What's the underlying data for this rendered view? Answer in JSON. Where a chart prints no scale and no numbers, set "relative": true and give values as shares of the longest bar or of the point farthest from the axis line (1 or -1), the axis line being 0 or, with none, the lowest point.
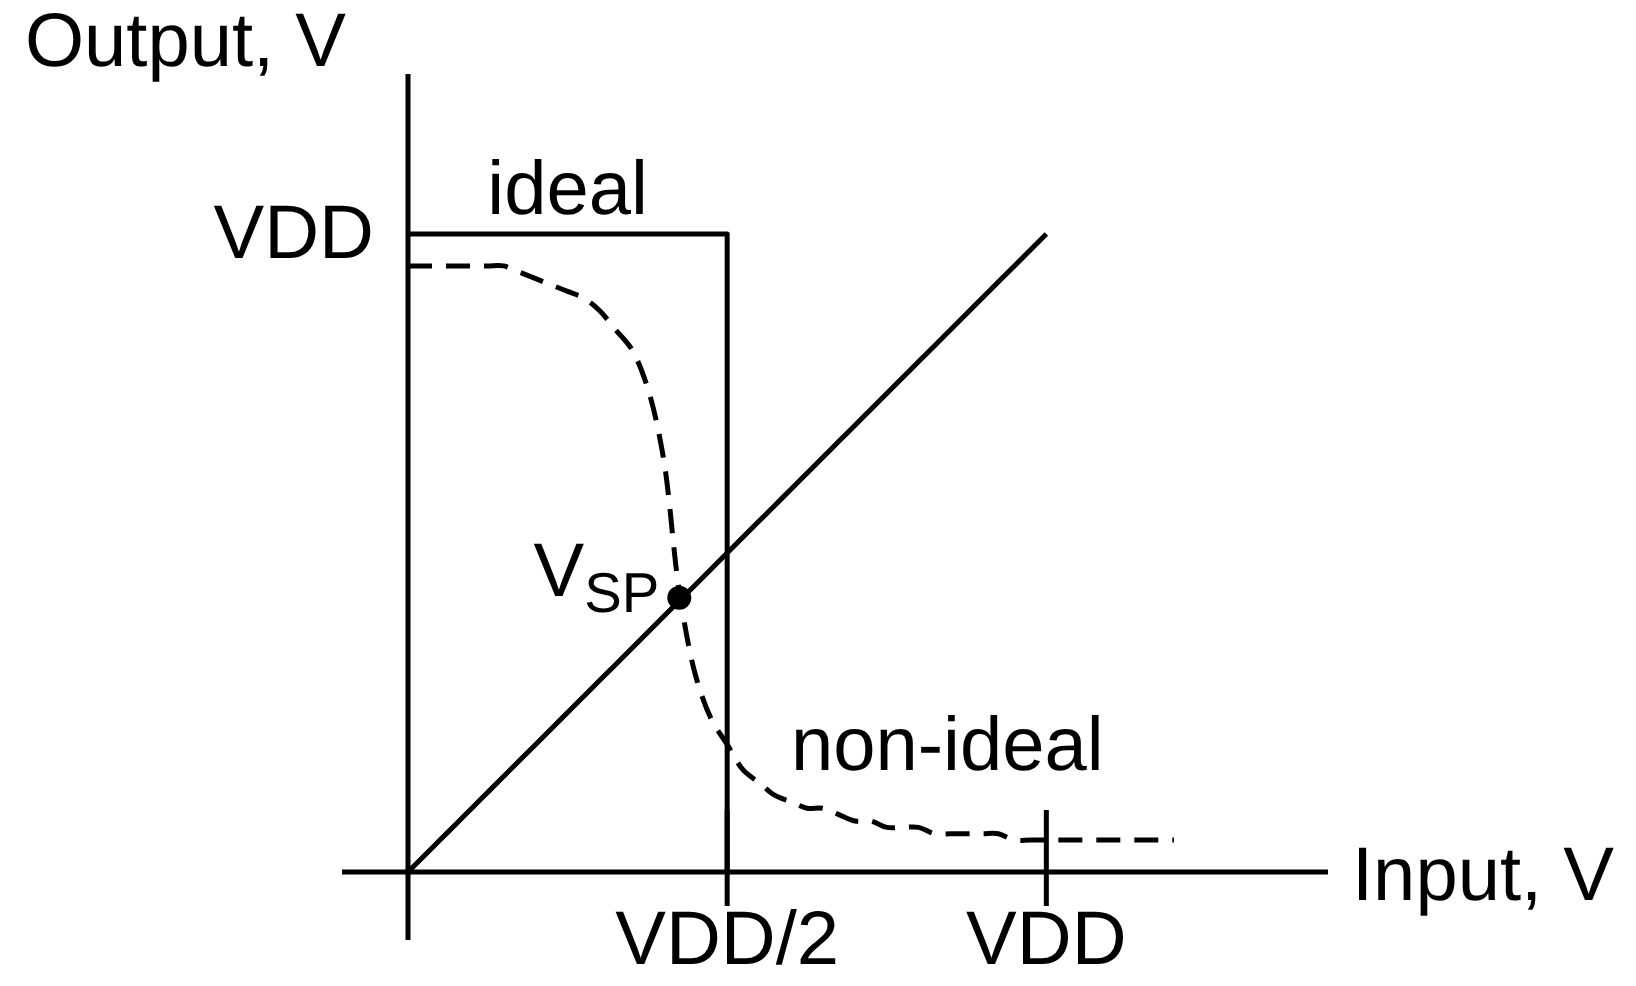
{
  "chart_data": {
    "type": "line",
    "xlabel": "Input, V",
    "ylabel": "Output, V",
    "relative": true,
    "categories": [
      null,
      null,
      null,
      null,
      null,
      null,
      null,
      null,
      null,
      null,
      null,
      null,
      null,
      null,
      null,
      null,
      null,
      null,
      null,
      null,
      "VDD/2",
      null,
      null,
      null,
      null,
      null,
      null,
      null,
      null,
      null,
      null,
      null,
      null,
      null,
      null,
      null,
      null,
      null,
      null,
      null,
      "VDD",
      null,
      null,
      null,
      null,
      null,
      null,
      null,
      null
    ],
    "series": [
      {
        "name": "ideal",
        "type": "step",
        "color": "#000000",
        "line_style": "solid",
        "values": [
          1,
          1,
          1,
          1,
          1,
          1,
          1,
          1,
          1,
          1,
          1,
          1,
          1,
          1,
          1,
          1,
          1,
          1,
          1,
          1,
          0,
          null,
          null,
          null,
          null,
          null,
          null,
          null,
          null,
          null,
          null,
          null,
          null,
          null,
          null,
          null,
          null,
          null,
          null,
          null,
          null,
          null,
          null,
          null,
          null,
          null,
          null,
          null,
          null
        ]
      },
      {
        "name": "non-ideal",
        "color": "#000000",
        "line_style": "dashed",
        "values": [
          0.95,
          0.95,
          0.95,
          0.95,
          0.95,
          0.95,
          0.95,
          0.94,
          0.93,
          0.92,
          0.91,
          0.9,
          0.88,
          0.85,
          0.82,
          0.76,
          0.65,
          0.44,
          0.31,
          0.24,
          0.2,
          0.16,
          0.14,
          0.12,
          0.11,
          0.1,
          0.1,
          0.09,
          0.08,
          0.08,
          0.07,
          0.07,
          0.07,
          0.06,
          0.06,
          0.06,
          0.06,
          0.06,
          0.05,
          0.05,
          0.05,
          0.05,
          0.05,
          0.05,
          0.05,
          0.05,
          0.05,
          0.05,
          0.05
        ]
      },
      {
        "color": "#000000",
        "line_style": "solid",
        "values": [
          0,
          0.025,
          0.05,
          0.075,
          0.1,
          0.125,
          0.15,
          0.175,
          0.2,
          0.225,
          0.25,
          0.275,
          0.3,
          0.325,
          0.35,
          0.375,
          0.4,
          0.425,
          0.45,
          0.475,
          0.5,
          0.525,
          0.55,
          0.575,
          0.6,
          0.625,
          0.65,
          0.675,
          0.7,
          0.725,
          0.75,
          0.775,
          0.8,
          0.825,
          0.85,
          0.875,
          0.9,
          0.925,
          0.95,
          0.975,
          1,
          null,
          null,
          null,
          null,
          null,
          null,
          null,
          null
        ]
      },
      {
        "name": "V$_{SP}$",
        "type": "scatter",
        "color": "#000000",
        "marker": "circle",
        "values": [
          null,
          null,
          null,
          null,
          null,
          null,
          null,
          null,
          null,
          null,
          null,
          null,
          null,
          null,
          null,
          null,
          null,
          0.43,
          null,
          null,
          null,
          null,
          null,
          null,
          null,
          null,
          null,
          null,
          null,
          null,
          null,
          null,
          null,
          null,
          null,
          null,
          null,
          null,
          null,
          null,
          null,
          null,
          null,
          null,
          null,
          null,
          null,
          null,
          null
        ]
      }
    ],
    "annotations": [
      "VDD"
    ]
  }
}
